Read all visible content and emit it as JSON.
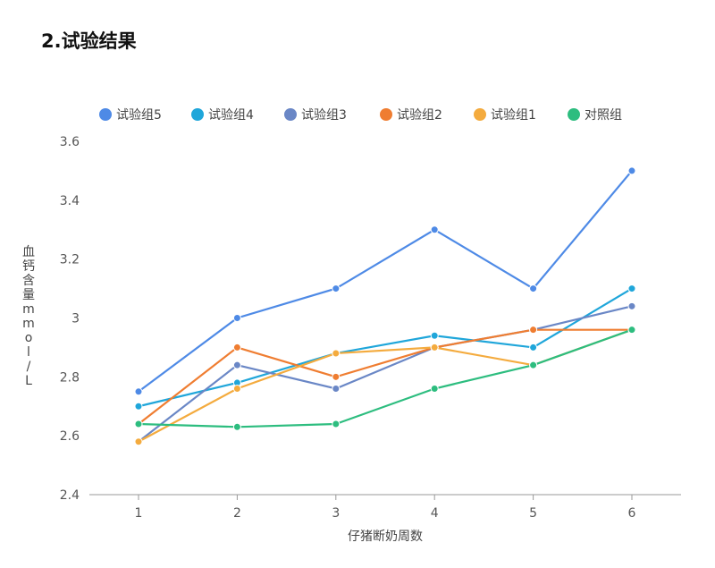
{
  "heading": "2.试验结果",
  "chart_data": {
    "type": "line",
    "title": "",
    "xlabel": "仔猪断奶周数",
    "ylabel": "血钙含量mmol/L",
    "categories": [
      "1",
      "2",
      "3",
      "4",
      "5",
      "6"
    ],
    "ylim": [
      2.4,
      3.6
    ],
    "yticks": [
      "2.4",
      "2.6",
      "2.8",
      "3",
      "3.2",
      "3.4",
      "3.6"
    ],
    "grid": false,
    "legend_position": "top",
    "series": [
      {
        "name": "试验组5",
        "color": "#4e8ae6",
        "values": [
          2.75,
          3.0,
          3.1,
          3.3,
          3.1,
          3.5
        ]
      },
      {
        "name": "试验组4",
        "color": "#1fa6da",
        "values": [
          2.7,
          2.78,
          2.88,
          2.94,
          2.9,
          3.1
        ]
      },
      {
        "name": "试验组3",
        "color": "#6a87c6",
        "values": [
          2.58,
          2.84,
          2.76,
          2.9,
          2.96,
          3.04
        ]
      },
      {
        "name": "试验组2",
        "color": "#ef7d31",
        "values": [
          2.64,
          2.9,
          2.8,
          2.9,
          2.96,
          2.96
        ]
      },
      {
        "name": "试验组1",
        "color": "#f4ab3e",
        "values": [
          2.58,
          2.76,
          2.88,
          2.9,
          2.84,
          2.96
        ]
      },
      {
        "name": "对照组",
        "color": "#2dbd7f",
        "values": [
          2.64,
          2.63,
          2.64,
          2.76,
          2.84,
          2.96
        ]
      }
    ]
  }
}
